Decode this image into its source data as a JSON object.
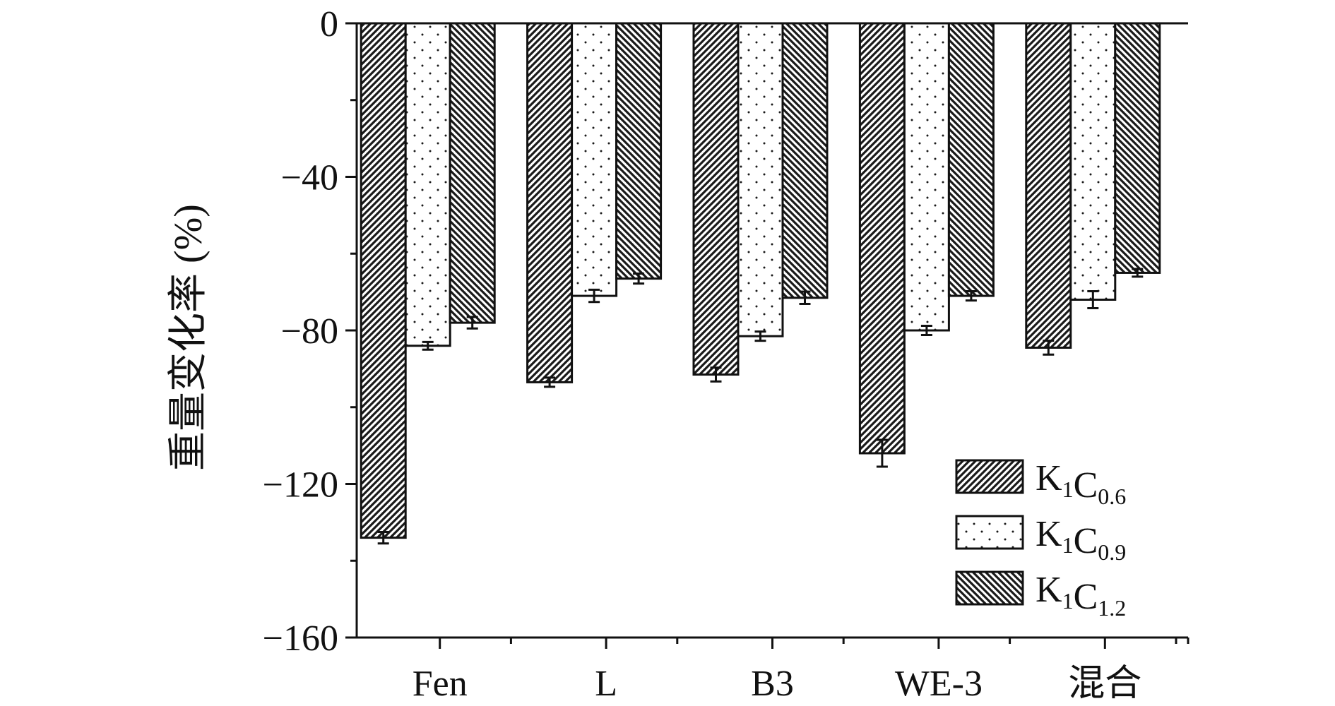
{
  "chart_data": {
    "type": "bar",
    "title": "",
    "xlabel": "",
    "ylabel": "重量变化率 (%)",
    "ylim": [
      -160,
      0
    ],
    "yticks": [
      0,
      -40,
      -80,
      -120,
      -160
    ],
    "categories": [
      "Fen",
      "L",
      "B3",
      "WE-3",
      "混合"
    ],
    "series": [
      {
        "name": "K1C0.6",
        "label_main": "K",
        "label_sub1": "1",
        "label_c": "C",
        "label_sub2": "0.6",
        "pattern": "hatch-forward",
        "values": [
          -134,
          -93.5,
          -91.5,
          -112,
          -84.5
        ],
        "errors": [
          1.5,
          1.2,
          1.8,
          3.5,
          1.8
        ]
      },
      {
        "name": "K1C0.9",
        "label_main": "K",
        "label_sub1": "1",
        "label_c": "C",
        "label_sub2": "0.9",
        "pattern": "dots",
        "values": [
          -84,
          -71,
          -81.5,
          -80,
          -72
        ],
        "errors": [
          1.0,
          1.6,
          1.2,
          1.2,
          2.2
        ]
      },
      {
        "name": "K1C1.2",
        "label_main": "K",
        "label_sub1": "1",
        "label_c": "C",
        "label_sub2": "1.2",
        "pattern": "hatch-backward",
        "values": [
          -78,
          -66.5,
          -71.5,
          -71,
          -65
        ],
        "errors": [
          1.5,
          1.3,
          1.6,
          1.2,
          1.0
        ]
      }
    ],
    "legend_position": "bottom-right",
    "grid": false
  }
}
